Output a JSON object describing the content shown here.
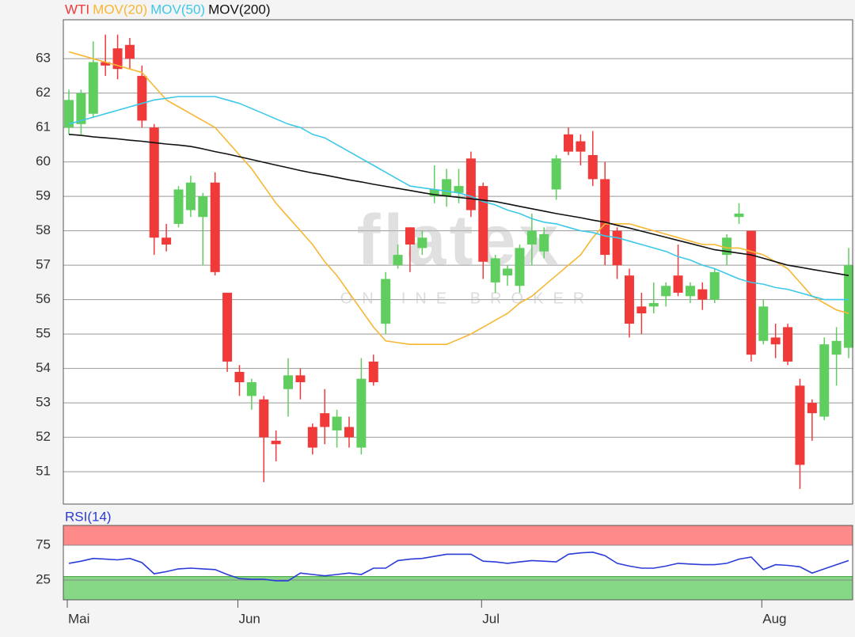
{
  "chart_data": [
    {
      "type": "candlestick",
      "series": [
        {
          "name": "WTI",
          "color": "#f03a3a",
          "up_color": "#5fce5f",
          "down_color": "#f03a3a",
          "open": [
            61.0,
            61.1,
            61.4,
            62.9,
            63.3,
            63.4,
            62.5,
            61.0,
            57.8,
            58.2,
            58.6,
            58.4,
            59.4,
            56.2,
            53.9,
            53.2,
            53.1,
            51.9,
            53.4,
            53.8,
            52.3,
            52.7,
            52.2,
            52.3,
            51.7,
            54.2,
            55.3,
            57.0,
            58.1,
            57.5,
            59.0,
            59.0,
            59.1,
            60.1,
            59.3,
            56.5,
            56.7,
            56.4,
            57.6,
            57.4,
            59.2,
            60.8,
            60.6,
            60.2,
            59.5,
            58.0,
            56.7,
            55.8,
            55.8,
            56.1,
            56.7,
            56.1,
            56.3,
            56.0,
            57.3,
            58.4,
            58.0,
            54.8,
            54.9,
            55.2,
            53.5,
            53.0,
            52.6,
            54.4,
            54.6
          ],
          "high": [
            62.1,
            62.1,
            63.5,
            63.7,
            63.7,
            63.6,
            62.8,
            61.1,
            58.2,
            59.3,
            59.6,
            59.1,
            59.7,
            56.2,
            54.1,
            53.7,
            53.2,
            52.2,
            54.3,
            54.0,
            52.4,
            53.4,
            52.8,
            52.6,
            54.3,
            54.4,
            56.8,
            57.6,
            58.1,
            58.0,
            59.9,
            59.8,
            59.8,
            60.3,
            59.4,
            57.3,
            57.0,
            57.6,
            58.5,
            58.1,
            60.2,
            61.0,
            60.8,
            60.9,
            60.0,
            58.1,
            56.9,
            56.2,
            56.5,
            56.5,
            57.6,
            56.5,
            56.5,
            56.9,
            57.9,
            58.8,
            58.0,
            56.0,
            55.3,
            55.3,
            53.7,
            53.1,
            54.9,
            55.2,
            57.5
          ],
          "low": [
            60.8,
            60.8,
            61.3,
            62.5,
            62.4,
            62.7,
            61.0,
            57.3,
            57.4,
            58.1,
            58.4,
            57.0,
            56.7,
            53.9,
            53.2,
            52.8,
            50.7,
            51.3,
            52.6,
            53.1,
            51.5,
            51.8,
            51.7,
            51.7,
            51.5,
            53.5,
            55.0,
            56.9,
            56.8,
            57.3,
            58.8,
            58.7,
            58.8,
            58.4,
            56.6,
            56.2,
            56.4,
            56.2,
            57.0,
            57.2,
            58.9,
            60.2,
            59.9,
            59.3,
            57.0,
            56.6,
            54.9,
            55.0,
            55.6,
            55.8,
            56.1,
            55.9,
            55.7,
            55.9,
            57.0,
            58.2,
            54.2,
            54.7,
            54.3,
            54.1,
            50.5,
            51.9,
            52.5,
            53.5,
            54.3
          ],
          "close": [
            61.8,
            62.0,
            62.9,
            62.8,
            62.7,
            63.0,
            61.2,
            57.8,
            57.6,
            59.2,
            59.4,
            59.0,
            56.8,
            54.2,
            53.6,
            53.6,
            52.0,
            51.8,
            53.8,
            53.6,
            51.7,
            52.3,
            52.6,
            52.0,
            53.7,
            53.6,
            56.6,
            57.3,
            57.6,
            57.8,
            59.2,
            59.5,
            59.3,
            58.6,
            57.1,
            57.2,
            56.9,
            57.5,
            58.0,
            57.9,
            60.1,
            60.3,
            60.3,
            59.5,
            57.3,
            57.0,
            55.3,
            55.6,
            55.9,
            56.4,
            56.2,
            56.4,
            56.0,
            56.8,
            57.8,
            58.5,
            54.4,
            55.8,
            54.7,
            54.2,
            51.2,
            52.7,
            54.7,
            54.8,
            57.0
          ]
        }
      ],
      "overlays": [
        {
          "name": "MOV(20)",
          "color": "#f7b733",
          "values": [
            63.2,
            63.1,
            63.0,
            62.9,
            62.8,
            62.7,
            62.6,
            62.2,
            61.8,
            61.6,
            61.4,
            61.2,
            61.0,
            60.6,
            60.2,
            59.8,
            59.3,
            58.8,
            58.4,
            58.0,
            57.6,
            57.1,
            56.7,
            56.2,
            55.7,
            55.2,
            54.8,
            54.75,
            54.7,
            54.7,
            54.7,
            54.7,
            54.85,
            55.0,
            55.2,
            55.4,
            55.6,
            55.9,
            56.1,
            56.4,
            56.7,
            57.0,
            57.3,
            57.8,
            58.2,
            58.2,
            58.2,
            58.1,
            58.0,
            57.9,
            57.8,
            57.7,
            57.6,
            57.6,
            57.5,
            57.5,
            57.4,
            57.3,
            57.1,
            56.9,
            56.5,
            56.1,
            55.9,
            55.7,
            55.6
          ]
        },
        {
          "name": "MOV(50)",
          "color": "#3cc8e8",
          "values": [
            61.1,
            61.2,
            61.3,
            61.4,
            61.5,
            61.6,
            61.7,
            61.8,
            61.85,
            61.9,
            61.9,
            61.9,
            61.9,
            61.8,
            61.7,
            61.55,
            61.4,
            61.25,
            61.1,
            61.0,
            60.8,
            60.7,
            60.5,
            60.3,
            60.1,
            59.9,
            59.7,
            59.5,
            59.3,
            59.25,
            59.2,
            59.15,
            59.1,
            59.0,
            58.85,
            58.75,
            58.6,
            58.5,
            58.35,
            58.25,
            58.2,
            58.1,
            58.0,
            57.95,
            57.85,
            57.8,
            57.7,
            57.6,
            57.5,
            57.4,
            57.25,
            57.15,
            57.0,
            56.9,
            56.75,
            56.6,
            56.5,
            56.45,
            56.35,
            56.3,
            56.2,
            56.1,
            56.0,
            56.0,
            56.0
          ]
        },
        {
          "name": "MOV(200)",
          "color": "#111111",
          "values": [
            60.8,
            60.77,
            60.73,
            60.7,
            60.67,
            60.63,
            60.6,
            60.56,
            60.52,
            60.49,
            60.45,
            60.38,
            60.3,
            60.23,
            60.15,
            60.07,
            59.99,
            59.91,
            59.83,
            59.75,
            59.68,
            59.62,
            59.55,
            59.48,
            59.42,
            59.35,
            59.29,
            59.23,
            59.17,
            59.11,
            59.05,
            59.01,
            58.97,
            58.93,
            58.89,
            58.85,
            58.78,
            58.71,
            58.64,
            58.57,
            58.5,
            58.44,
            58.38,
            58.31,
            58.25,
            58.16,
            58.08,
            57.99,
            57.9,
            57.81,
            57.72,
            57.63,
            57.54,
            57.45,
            57.4,
            57.35,
            57.3,
            57.2,
            57.1,
            57.0,
            56.94,
            56.88,
            56.82,
            56.76,
            56.7
          ]
        }
      ],
      "ylim": [
        50.06,
        64.13
      ],
      "yticks": [
        51,
        52,
        53,
        54,
        55,
        56,
        57,
        58,
        59,
        60,
        61,
        62,
        63
      ],
      "grid": true,
      "watermark": "flatex",
      "watermark_subtext": "ONLINE BROKER"
    },
    {
      "type": "line",
      "categories": [
        "Mai",
        null,
        null,
        null,
        null,
        null,
        null,
        null,
        null,
        null,
        null,
        null,
        null,
        null,
        "Jun",
        null,
        null,
        null,
        null,
        null,
        null,
        null,
        null,
        null,
        null,
        null,
        null,
        null,
        null,
        null,
        null,
        null,
        null,
        null,
        "Jul",
        null,
        null,
        null,
        null,
        null,
        null,
        null,
        null,
        null,
        null,
        null,
        null,
        null,
        null,
        null,
        null,
        null,
        null,
        null,
        null,
        null,
        null,
        "Aug",
        null,
        null,
        null,
        null,
        null,
        null,
        null
      ],
      "series": [
        {
          "name": "RSI(14)",
          "color": "#2a3bd8",
          "values": [
            49,
            52,
            56,
            55,
            54,
            56,
            50,
            34,
            37,
            41,
            42,
            41,
            40,
            33,
            27,
            26,
            26,
            24,
            24,
            35,
            33,
            31,
            33,
            35,
            33,
            42,
            42,
            53,
            55,
            56,
            59,
            62,
            62,
            62,
            52,
            51,
            49,
            51,
            53,
            52,
            51,
            62,
            64,
            65,
            60,
            49,
            45,
            42,
            42,
            45,
            49,
            48,
            47,
            47,
            49,
            55,
            58,
            40,
            47,
            46,
            44,
            35,
            41,
            47,
            53
          ]
        }
      ],
      "ylim": [
        -3.4,
        103.4
      ],
      "yticks": [
        25,
        75
      ],
      "overbought": 75,
      "overbought_color": "#ff8a8a",
      "oversold": 30,
      "oversold_color": "#86d886"
    }
  ]
}
